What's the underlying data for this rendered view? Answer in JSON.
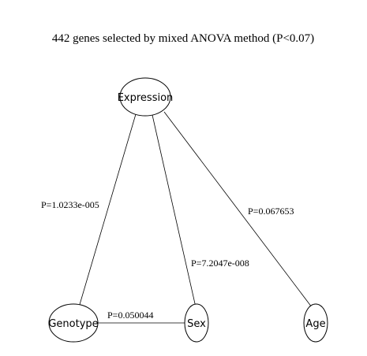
{
  "title": "442 genes selected by mixed ANOVA method (P<0.07)",
  "nodes": {
    "expression": "Expression",
    "genotype": "Genotype",
    "sex": "Sex",
    "age": "Age"
  },
  "edges": {
    "expression_genotype": "P=1.0233e-005",
    "expression_sex": "P=7.2047e-008",
    "expression_age": "P=0.067653",
    "genotype_sex": "P=0.050044"
  }
}
